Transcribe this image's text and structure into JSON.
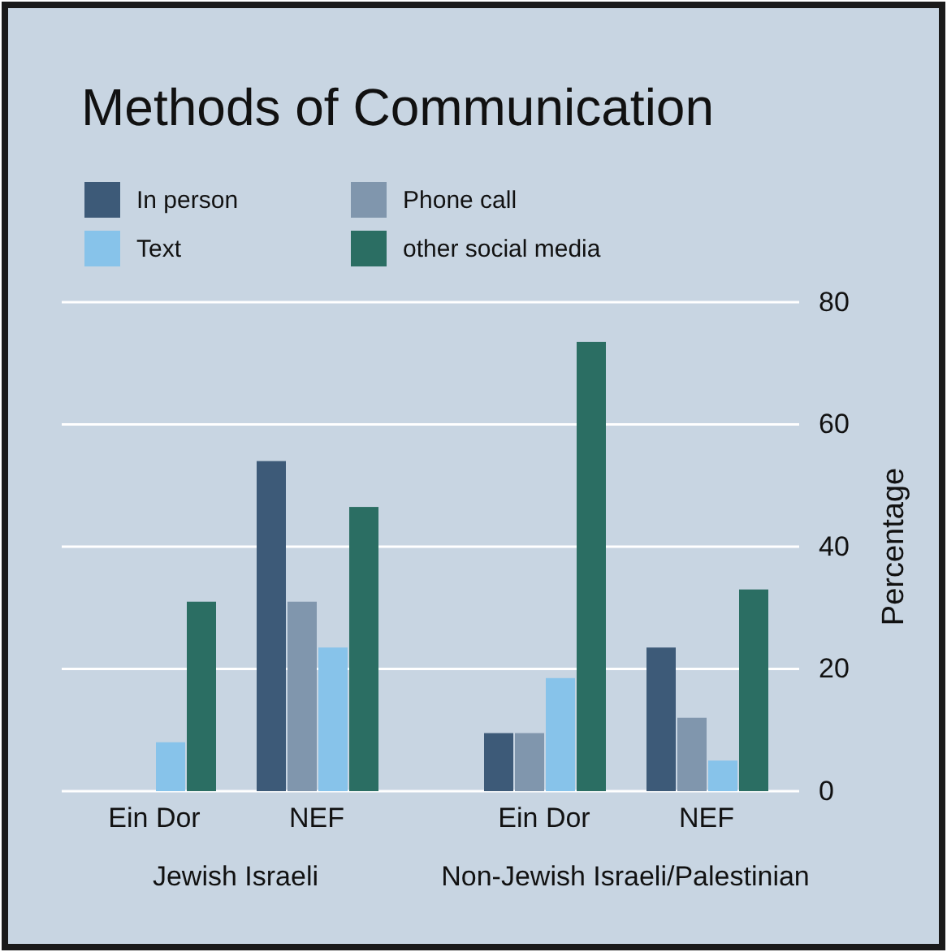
{
  "chart_data": {
    "type": "bar",
    "title": "Methods of Communication",
    "ylabel": "Percentage",
    "categories": [
      "Ein Dor",
      "NEF",
      "Ein Dor",
      "NEF"
    ],
    "annotations": [
      "Jewish Israeli",
      "Non-Jewish Israeli/Palestinian"
    ],
    "series": [
      {
        "name": "In person",
        "color": "#3d5a78",
        "values": [
          0,
          54,
          9.5,
          23.5
        ]
      },
      {
        "name": "Phone call",
        "color": "#8096ad",
        "values": [
          0,
          31,
          9.5,
          12
        ]
      },
      {
        "name": "Text",
        "color": "#87c3ea",
        "values": [
          8,
          23.5,
          18.5,
          5
        ]
      },
      {
        "name": "other social media",
        "color": "#2b6e63",
        "values": [
          31,
          46.5,
          73.5,
          33
        ]
      }
    ],
    "ylim": [
      0,
      80
    ],
    "yticks": [
      0,
      20,
      40,
      60,
      80
    ],
    "grid": "y",
    "legend": "top left"
  }
}
